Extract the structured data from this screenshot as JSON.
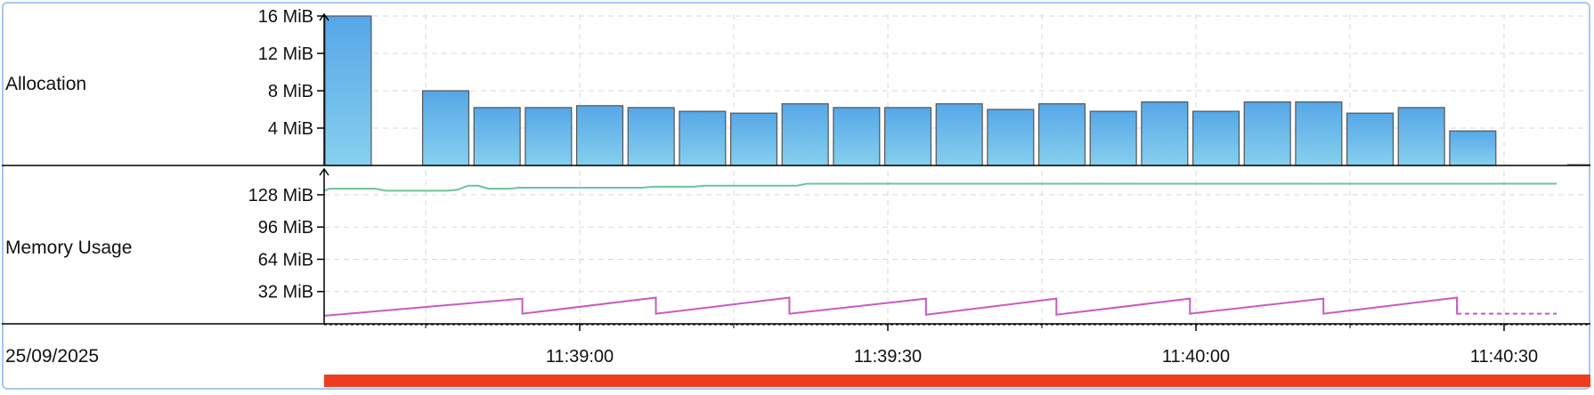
{
  "panels": {
    "allocation_label": "Allocation",
    "memory_label": "Memory Usage",
    "date_label": "25/09/2025"
  },
  "colors": {
    "bar_top": "#56a7e8",
    "bar_bottom": "#86d0ee",
    "bar_stroke": "#555555",
    "green_line": "#6cc49a",
    "magenta_line": "#c95ac4",
    "timeline_bar": "#f03c1e",
    "grid": "#d9d9d9",
    "frame": "#a8c8ee"
  },
  "chart_data": [
    {
      "type": "bar",
      "title": "Allocation",
      "y_unit": "MiB",
      "ylim": [
        0,
        16
      ],
      "yticks": [
        "4 MiB",
        "8 MiB",
        "12 MiB",
        "16 MiB"
      ],
      "ytick_values": [
        4,
        8,
        12,
        16
      ],
      "grid": true,
      "bar_width_s": 4.5,
      "bars": [
        {
          "t": 0,
          "v": 16.0
        },
        {
          "t": 9.5,
          "v": 8.0
        },
        {
          "t": 14.5,
          "v": 6.2
        },
        {
          "t": 19.5,
          "v": 6.2
        },
        {
          "t": 24.5,
          "v": 6.4
        },
        {
          "t": 29.5,
          "v": 6.2
        },
        {
          "t": 34.5,
          "v": 5.8
        },
        {
          "t": 39.5,
          "v": 5.6
        },
        {
          "t": 44.5,
          "v": 6.6
        },
        {
          "t": 49.5,
          "v": 6.2
        },
        {
          "t": 54.5,
          "v": 6.2
        },
        {
          "t": 59.5,
          "v": 6.6
        },
        {
          "t": 64.5,
          "v": 6.0
        },
        {
          "t": 69.5,
          "v": 6.6
        },
        {
          "t": 74.5,
          "v": 5.8
        },
        {
          "t": 79.5,
          "v": 6.8
        },
        {
          "t": 84.5,
          "v": 5.8
        },
        {
          "t": 89.5,
          "v": 6.8
        },
        {
          "t": 94.5,
          "v": 6.8
        },
        {
          "t": 99.5,
          "v": 5.6
        },
        {
          "t": 104.5,
          "v": 6.2
        },
        {
          "t": 109.5,
          "v": 3.7
        }
      ]
    },
    {
      "type": "line",
      "title": "Memory Usage",
      "y_unit": "MiB",
      "ylim": [
        0,
        150
      ],
      "yticks": [
        "32 MiB",
        "64 MiB",
        "96 MiB",
        "128 MiB"
      ],
      "ytick_values": [
        32,
        64,
        96,
        128
      ],
      "grid": true,
      "series": [
        {
          "points": [
            [
              0,
              132
            ],
            [
              0.5,
              134
            ],
            [
              5,
              134
            ],
            [
              6,
              132
            ],
            [
              12,
              132
            ],
            [
              13,
              133
            ],
            [
              14,
              137
            ],
            [
              15,
              137
            ],
            [
              16,
              134
            ],
            [
              18,
              134
            ],
            [
              19,
              135
            ],
            [
              31,
              135
            ],
            [
              32,
              136
            ],
            [
              36,
              136
            ],
            [
              37,
              137
            ],
            [
              46,
              137
            ],
            [
              47,
              139
            ],
            [
              120,
              139
            ]
          ]
        },
        {
          "points": [
            [
              0,
              8
            ],
            [
              19.3,
              25
            ],
            [
              19.3,
              10
            ],
            [
              32.3,
              26
            ],
            [
              32.3,
              10
            ],
            [
              45.3,
              26
            ],
            [
              45.3,
              10
            ],
            [
              58.6,
              25
            ],
            [
              58.6,
              9
            ],
            [
              71.3,
              25
            ],
            [
              71.3,
              9
            ],
            [
              84.3,
              25
            ],
            [
              84.3,
              10
            ],
            [
              97.3,
              25
            ],
            [
              97.3,
              10
            ],
            [
              110.3,
              26
            ],
            [
              110.3,
              10
            ],
            [
              120,
              10
            ]
          ],
          "dashed_after": 110.3
        }
      ]
    }
  ],
  "x_axis": {
    "start": "11:38:35",
    "ticks": [
      {
        "t": 25,
        "label": "11:39:00"
      },
      {
        "t": 55,
        "label": "11:39:30"
      },
      {
        "t": 85,
        "label": "11:40:00"
      },
      {
        "t": 115,
        "label": "11:40:30"
      }
    ],
    "minor_ticks": [
      10,
      40,
      70,
      100
    ],
    "range": [
      0,
      120
    ]
  }
}
